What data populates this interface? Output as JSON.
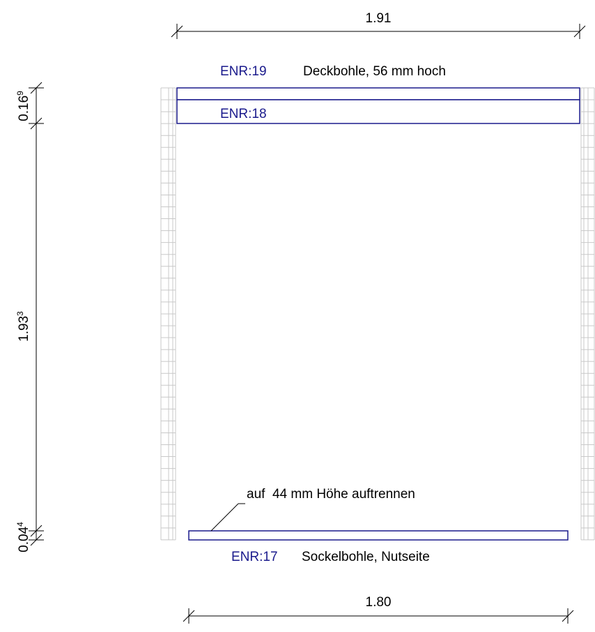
{
  "colors": {
    "plank_stroke": "#1a1a8c",
    "enr_text": "#1a1a8c",
    "post_stroke": "#c8c8c8",
    "dim_stroke": "#000000"
  },
  "dimensions": {
    "top_width": "1.91",
    "bottom_width": "1.80",
    "left_top_main": "0.16",
    "left_top_sup": "9",
    "left_mid_main": "1.93",
    "left_mid_sup": "3",
    "left_bot_main": "0.04",
    "left_bot_sup": "4"
  },
  "planks": {
    "top": {
      "enr": "ENR:19",
      "description": "Deckbohle, 56 mm hoch"
    },
    "second": {
      "enr": "ENR:18"
    },
    "bottom": {
      "enr": "ENR:17",
      "description": "Sockelbohle, Nutseite"
    }
  },
  "note": "auf  44 mm Höhe auftrennen"
}
